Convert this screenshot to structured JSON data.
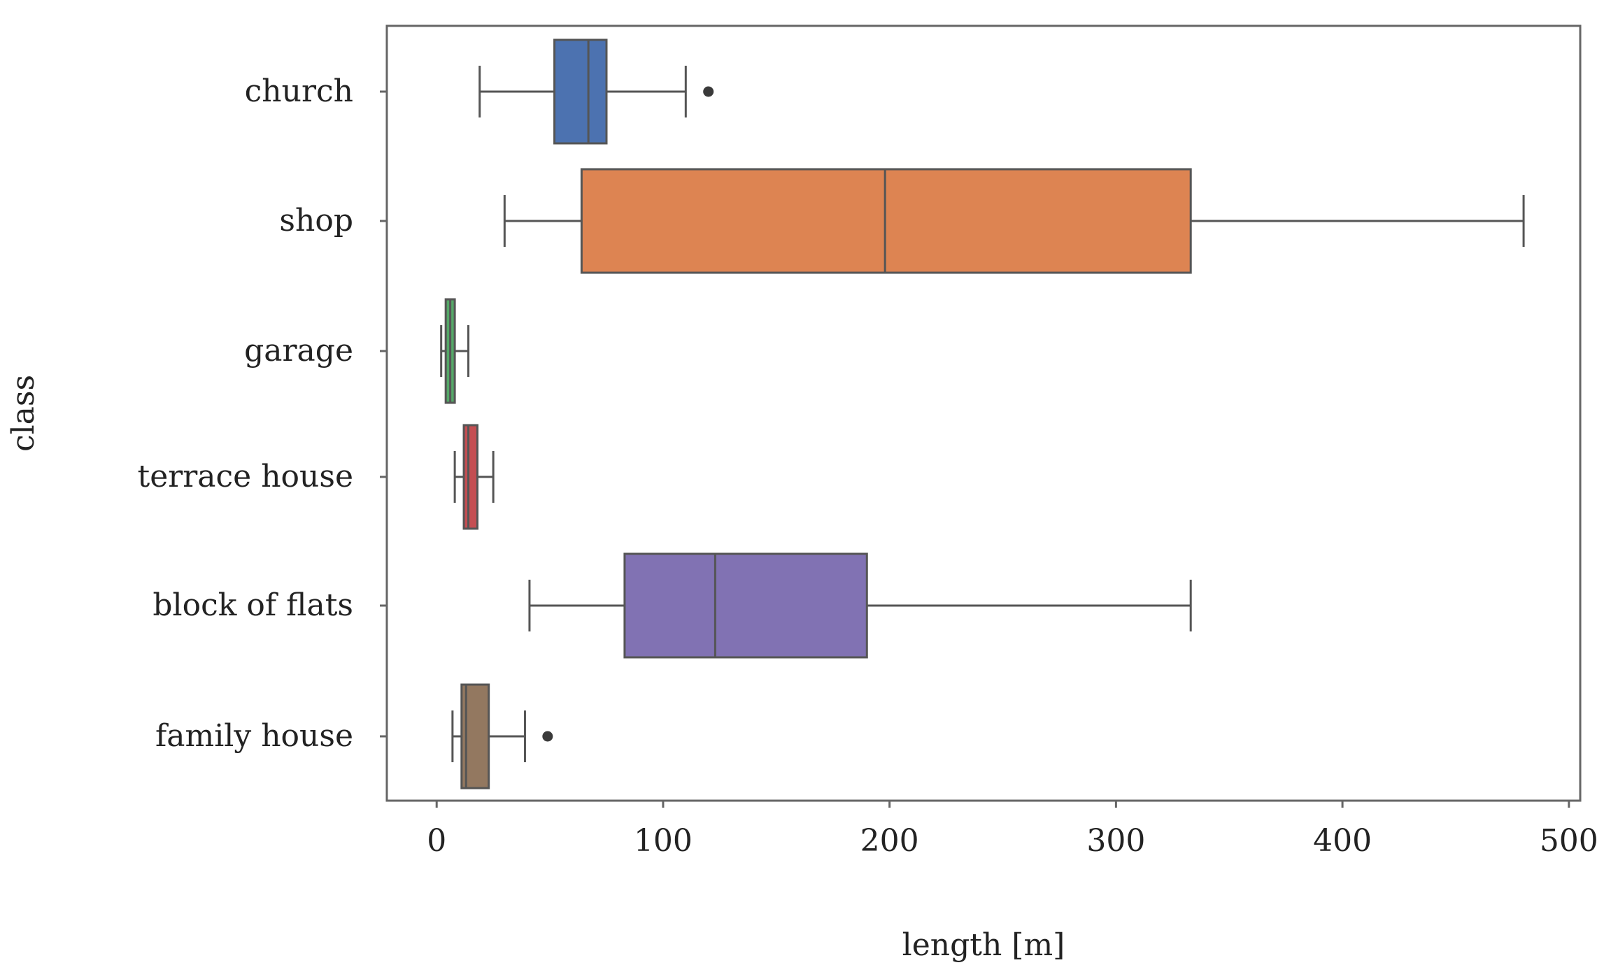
{
  "chart_data": {
    "type": "box",
    "orientation": "horizontal",
    "title": "",
    "xlabel": "length [m]",
    "ylabel": "class",
    "xlim": [
      -22,
      505
    ],
    "xticks": [
      0,
      100,
      200,
      300,
      400,
      500
    ],
    "xtick_labels": [
      "0",
      "100",
      "200",
      "300",
      "400",
      "500"
    ],
    "grid": false,
    "legend": "none",
    "categories": [
      "church",
      "shop",
      "garage",
      "terrace house",
      "block of flats",
      "family house"
    ],
    "boxes": [
      {
        "label": "church",
        "whisker_low": 19,
        "q1": 52,
        "median": 67,
        "q3": 75,
        "whisker_high": 110,
        "outliers": [
          120
        ],
        "color": "#4c72b0"
      },
      {
        "label": "shop",
        "whisker_low": 30,
        "q1": 64,
        "median": 198,
        "q3": 333,
        "whisker_high": 480,
        "outliers": [],
        "color": "#dd8452"
      },
      {
        "label": "garage",
        "whisker_low": 2,
        "q1": 4,
        "median": 6,
        "q3": 8,
        "whisker_high": 14,
        "outliers": [],
        "color": "#55a868"
      },
      {
        "label": "terrace house",
        "whisker_low": 8,
        "q1": 12,
        "median": 14,
        "q3": 18,
        "whisker_high": 25,
        "outliers": [],
        "color": "#c44e52"
      },
      {
        "label": "block of flats",
        "whisker_low": 41,
        "q1": 83,
        "median": 123,
        "q3": 190,
        "whisker_high": 333,
        "outliers": [],
        "color": "#8172b3"
      },
      {
        "label": "family house",
        "whisker_low": 7,
        "q1": 11,
        "median": 13,
        "q3": 23,
        "whisker_high": 39,
        "outliers": [
          49
        ],
        "color": "#937860"
      }
    ]
  }
}
